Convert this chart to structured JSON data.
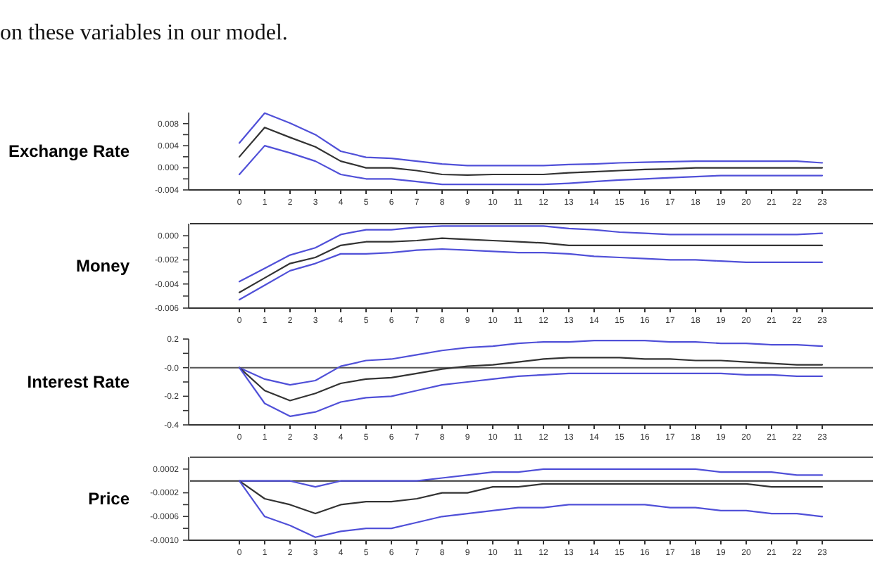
{
  "chart_data": [
    {
      "type": "line",
      "ylabel": "Exchange Rate",
      "annotations": [
        "on these variables in our model."
      ],
      "x": [
        0,
        1,
        2,
        3,
        4,
        5,
        6,
        7,
        8,
        9,
        10,
        11,
        12,
        13,
        14,
        15,
        16,
        17,
        18,
        19,
        20,
        21,
        22,
        23
      ],
      "xlim": [
        -2,
        25
      ],
      "xticks": [
        0,
        1,
        2,
        3,
        4,
        5,
        6,
        7,
        8,
        9,
        10,
        11,
        12,
        13,
        14,
        15,
        16,
        17,
        18,
        19,
        20,
        21,
        22,
        23
      ],
      "ylim": [
        -0.004,
        0.01
      ],
      "yticks": [
        {
          "value": -0.004,
          "label": "-0.004"
        },
        {
          "value": -0.002,
          "label": null
        },
        {
          "value": 0,
          "label": "0.000"
        },
        {
          "value": 0.002,
          "label": null
        },
        {
          "value": 0.004,
          "label": "0.004"
        },
        {
          "value": 0.006,
          "label": null
        },
        {
          "value": 0.008,
          "label": "0.008"
        }
      ],
      "series": [
        {
          "color": "#5050d8",
          "values": [
            0.0045,
            0.0099,
            0.0081,
            0.006,
            0.003,
            0.0019,
            0.0017,
            0.0012,
            0.0007,
            0.0004,
            0.0004,
            0.0004,
            0.0004,
            0.0006,
            0.0007,
            0.0009,
            0.001,
            0.0011,
            0.0012,
            0.0012,
            0.0012,
            0.0012,
            0.0012,
            0.0009
          ]
        },
        {
          "color": "#333333",
          "values": [
            0.002,
            0.0073,
            0.0055,
            0.0038,
            0.0012,
            0,
            0,
            -0.0005,
            -0.0012,
            -0.0013,
            -0.0012,
            -0.0012,
            -0.0012,
            -0.0009,
            -0.0007,
            -0.0005,
            -0.0003,
            -0.0002,
            0,
            0,
            0,
            0,
            0,
            0
          ]
        },
        {
          "color": "#5050d8",
          "values": [
            -0.0012,
            0.004,
            0.0027,
            0.0012,
            -0.0012,
            -0.002,
            -0.002,
            -0.0025,
            -0.003,
            -0.003,
            -0.003,
            -0.003,
            -0.003,
            -0.0028,
            -0.0025,
            -0.0022,
            -0.002,
            -0.0018,
            -0.0016,
            -0.0014,
            -0.0014,
            -0.0014,
            -0.0014,
            -0.0014
          ]
        }
      ]
    },
    {
      "type": "line",
      "ylabel": "Money",
      "x": [
        0,
        1,
        2,
        3,
        4,
        5,
        6,
        7,
        8,
        9,
        10,
        11,
        12,
        13,
        14,
        15,
        16,
        17,
        18,
        19,
        20,
        21,
        22,
        23
      ],
      "xlim": [
        -2,
        25
      ],
      "xticks": [
        0,
        1,
        2,
        3,
        4,
        5,
        6,
        7,
        8,
        9,
        10,
        11,
        12,
        13,
        14,
        15,
        16,
        17,
        18,
        19,
        20,
        21,
        22,
        23
      ],
      "ylim": [
        -0.006,
        0.001
      ],
      "yticks": [
        {
          "value": -0.006,
          "label": "-0.006"
        },
        {
          "value": -0.005,
          "label": null
        },
        {
          "value": -0.004,
          "label": "-0.004"
        },
        {
          "value": -0.003,
          "label": null
        },
        {
          "value": -0.002,
          "label": "-0.002"
        },
        {
          "value": -0.001,
          "label": null
        },
        {
          "value": 0,
          "label": "0.000"
        }
      ],
      "ref_lines": [
        {
          "axis": "y",
          "value": 0.001,
          "color": "#333333"
        }
      ],
      "series": [
        {
          "color": "#5050d8",
          "values": [
            -0.0038,
            -0.0027,
            -0.0016,
            -0.001,
            0.0001,
            0.0005,
            0.0005,
            0.0007,
            0.0008,
            0.0008,
            0.0008,
            0.0008,
            0.0008,
            0.0006,
            0.0005,
            0.0003,
            0.0002,
            0.0001,
            0.0001,
            0.0001,
            0.0001,
            0.0001,
            0.0001,
            0.0002
          ]
        },
        {
          "color": "#333333",
          "values": [
            -0.0047,
            -0.0035,
            -0.0023,
            -0.0018,
            -0.0008,
            -0.0005,
            -0.0005,
            -0.0004,
            -0.0002,
            -0.0003,
            -0.0004,
            -0.0005,
            -0.0006,
            -0.0008,
            -0.0008,
            -0.0008,
            -0.0008,
            -0.0008,
            -0.0008,
            -0.0008,
            -0.0008,
            -0.0008,
            -0.0008,
            -0.0008
          ]
        },
        {
          "color": "#5050d8",
          "values": [
            -0.0053,
            -0.0041,
            -0.0029,
            -0.0023,
            -0.0015,
            -0.0015,
            -0.0014,
            -0.0012,
            -0.0011,
            -0.0012,
            -0.0013,
            -0.0014,
            -0.0014,
            -0.0015,
            -0.0017,
            -0.0018,
            -0.0019,
            -0.002,
            -0.002,
            -0.0021,
            -0.0022,
            -0.0022,
            -0.0022,
            -0.0022
          ]
        }
      ]
    },
    {
      "type": "line",
      "ylabel": "Interest Rate",
      "x": [
        0,
        1,
        2,
        3,
        4,
        5,
        6,
        7,
        8,
        9,
        10,
        11,
        12,
        13,
        14,
        15,
        16,
        17,
        18,
        19,
        20,
        21,
        22,
        23
      ],
      "xlim": [
        -2,
        25
      ],
      "xticks": [
        0,
        1,
        2,
        3,
        4,
        5,
        6,
        7,
        8,
        9,
        10,
        11,
        12,
        13,
        14,
        15,
        16,
        17,
        18,
        19,
        20,
        21,
        22,
        23
      ],
      "ylim": [
        -0.4,
        0.2
      ],
      "yticks": [
        {
          "value": -0.4,
          "label": "-0.4"
        },
        {
          "value": -0.3,
          "label": null
        },
        {
          "value": -0.2,
          "label": "-0.2"
        },
        {
          "value": -0.1,
          "label": null
        },
        {
          "value": 0,
          "label": "-0.0"
        },
        {
          "value": 0.1,
          "label": null
        },
        {
          "value": 0.2,
          "label": "0.2"
        }
      ],
      "ref_lines": [
        {
          "axis": "y",
          "value": 0,
          "color": "#555555"
        }
      ],
      "series": [
        {
          "color": "#5050d8",
          "values": [
            0,
            -0.08,
            -0.12,
            -0.09,
            0.01,
            0.05,
            0.06,
            0.09,
            0.12,
            0.14,
            0.15,
            0.17,
            0.18,
            0.18,
            0.19,
            0.19,
            0.19,
            0.18,
            0.18,
            0.17,
            0.17,
            0.16,
            0.16,
            0.15
          ]
        },
        {
          "color": "#333333",
          "values": [
            0,
            -0.16,
            -0.23,
            -0.18,
            -0.11,
            -0.08,
            -0.07,
            -0.04,
            -0.01,
            0.01,
            0.02,
            0.04,
            0.06,
            0.07,
            0.07,
            0.07,
            0.06,
            0.06,
            0.05,
            0.05,
            0.04,
            0.03,
            0.02,
            0.02
          ]
        },
        {
          "color": "#5050d8",
          "values": [
            0,
            -0.25,
            -0.34,
            -0.31,
            -0.24,
            -0.21,
            -0.2,
            -0.16,
            -0.12,
            -0.1,
            -0.08,
            -0.06,
            -0.05,
            -0.04,
            -0.04,
            -0.04,
            -0.04,
            -0.04,
            -0.04,
            -0.04,
            -0.05,
            -0.05,
            -0.06,
            -0.06
          ]
        }
      ]
    },
    {
      "type": "line",
      "ylabel": "Price",
      "x": [
        0,
        1,
        2,
        3,
        4,
        5,
        6,
        7,
        8,
        9,
        10,
        11,
        12,
        13,
        14,
        15,
        16,
        17,
        18,
        19,
        20,
        21,
        22,
        23
      ],
      "xlim": [
        -2,
        25
      ],
      "xticks": [
        0,
        1,
        2,
        3,
        4,
        5,
        6,
        7,
        8,
        9,
        10,
        11,
        12,
        13,
        14,
        15,
        16,
        17,
        18,
        19,
        20,
        21,
        22,
        23
      ],
      "ylim": [
        -0.001,
        0.0004
      ],
      "yticks": [
        {
          "value": -0.001,
          "label": "-0.0010"
        },
        {
          "value": -0.0008,
          "label": null
        },
        {
          "value": -0.0006,
          "label": "-0.0006"
        },
        {
          "value": -0.0004,
          "label": null
        },
        {
          "value": -0.0002,
          "label": "-0.0002"
        },
        {
          "value": 0.0002,
          "label": "0.0002"
        }
      ],
      "ref_lines": [
        {
          "axis": "y",
          "value": 0.0004,
          "color": "#555555"
        },
        {
          "axis": "y",
          "value": 0,
          "color": "#333333"
        }
      ],
      "series": [
        {
          "color": "#5050d8",
          "values": [
            0,
            0,
            0,
            -0.0001,
            0,
            0,
            0,
            0,
            5e-05,
            0.0001,
            0.00015,
            0.00015,
            0.0002,
            0.0002,
            0.0002,
            0.0002,
            0.0002,
            0.0002,
            0.0002,
            0.00015,
            0.00015,
            0.00015,
            0.0001,
            0.0001
          ]
        },
        {
          "color": "#333333",
          "values": [
            0,
            -0.0003,
            -0.0004,
            -0.00055,
            -0.0004,
            -0.00035,
            -0.00035,
            -0.0003,
            -0.0002,
            -0.0002,
            -0.0001,
            -0.0001,
            -5e-05,
            -5e-05,
            -5e-05,
            -5e-05,
            -5e-05,
            -5e-05,
            -5e-05,
            -5e-05,
            -5e-05,
            -0.0001,
            -0.0001,
            -0.0001
          ]
        },
        {
          "color": "#5050d8",
          "values": [
            0,
            -0.0006,
            -0.00075,
            -0.00095,
            -0.00085,
            -0.0008,
            -0.0008,
            -0.0007,
            -0.0006,
            -0.00055,
            -0.0005,
            -0.00045,
            -0.00045,
            -0.0004,
            -0.0004,
            -0.0004,
            -0.0004,
            -0.00045,
            -0.00045,
            -0.0005,
            -0.0005,
            -0.00055,
            -0.00055,
            -0.0006
          ]
        }
      ]
    }
  ]
}
